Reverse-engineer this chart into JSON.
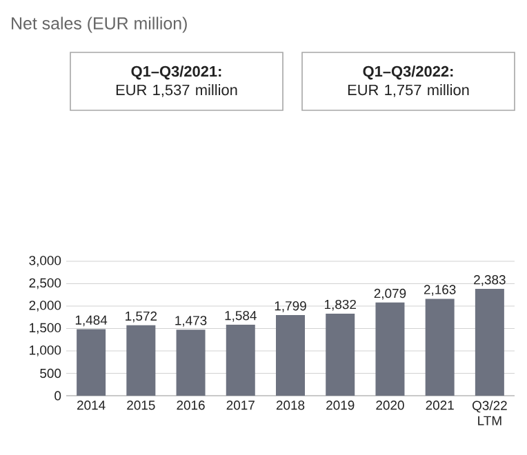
{
  "chart_data": {
    "type": "bar",
    "title": "Net sales (EUR million)",
    "annotations": [
      "**Q1–Q3/2021:** EUR 1,537 million",
      "**Q1–Q3/2022:** EUR 1,757 million"
    ],
    "categories": [
      "2014",
      "2015",
      "2016",
      "2017",
      "2018",
      "2019",
      "2020",
      "2021",
      "Q3/22 LTM"
    ],
    "values": [
      1484,
      1572,
      1473,
      1584,
      1799,
      1832,
      2079,
      2163,
      2383
    ],
    "value_labels": [
      "1,484",
      "1,572",
      "1,473",
      "1,584",
      "1,799",
      "1,832",
      "2,079",
      "2,163",
      "2,383"
    ],
    "color": "#6d7280",
    "ylim": [
      0,
      3000
    ],
    "yticks": [
      0,
      500,
      {
        "value": 1000,
        "label": "1,000"
      },
      {
        "value": 1500,
        "label": "1,500"
      },
      {
        "value": 2000,
        "label": "2,000"
      },
      {
        "value": 2500,
        "label": "2,500"
      },
      {
        "value": 3000,
        "label": "3,000"
      }
    ],
    "grid": "y"
  }
}
